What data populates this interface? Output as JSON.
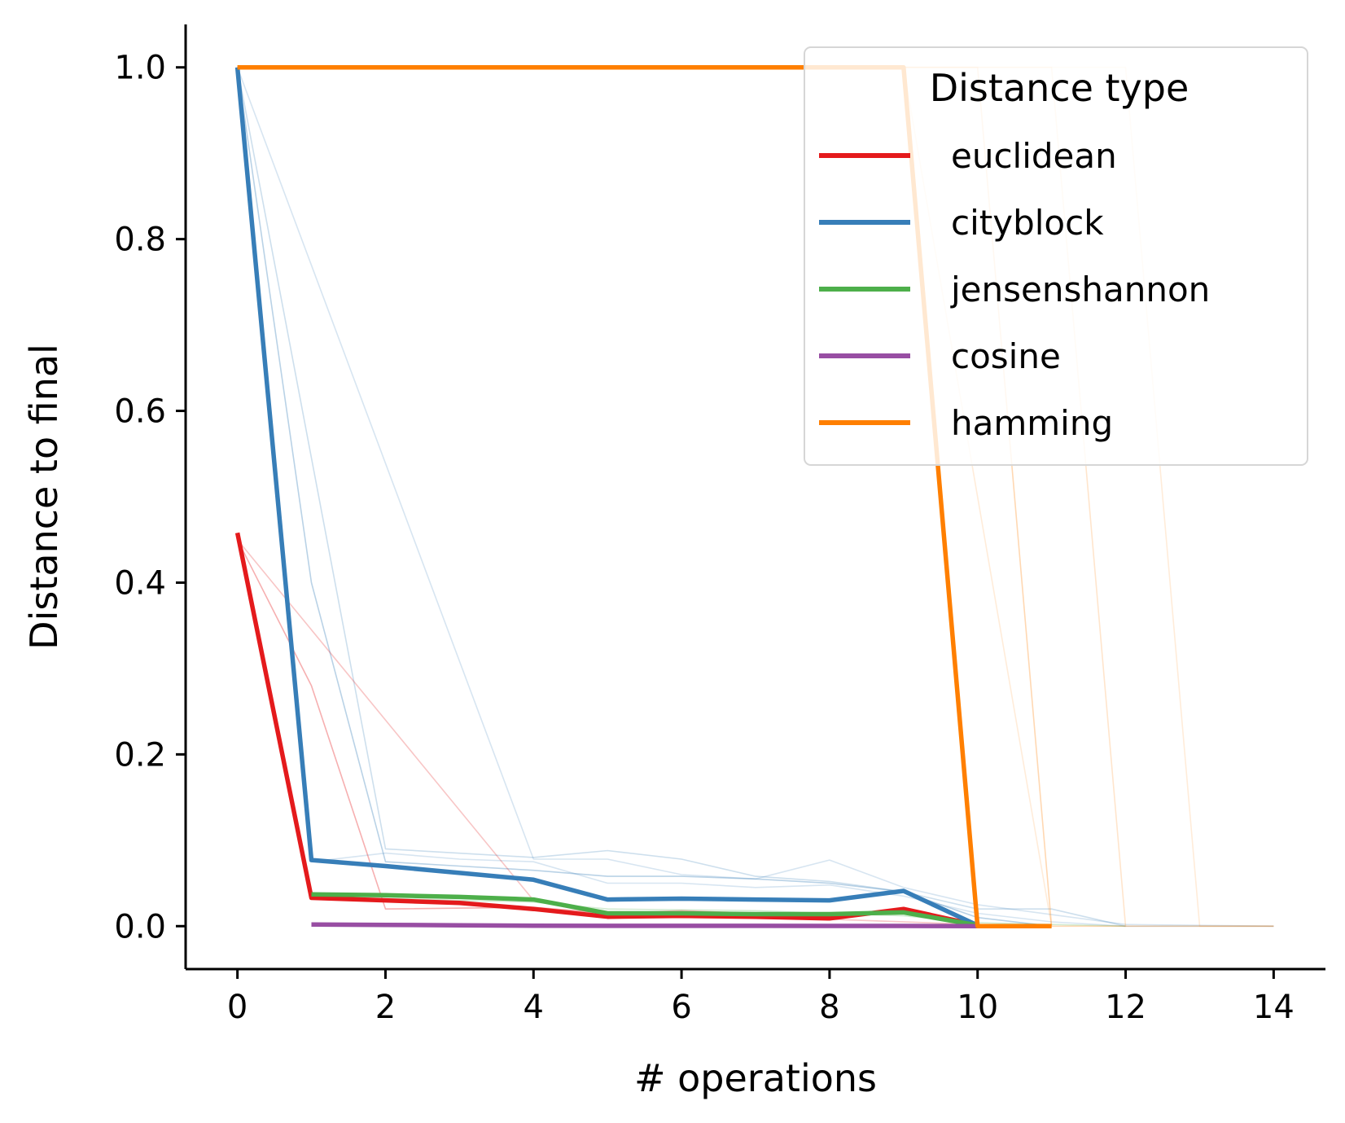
{
  "chart_data": {
    "type": "line",
    "xlabel": "# operations",
    "ylabel": "Distance to final",
    "xlim": [
      -0.7,
      14.7
    ],
    "ylim": [
      -0.05,
      1.05
    ],
    "xticks": [
      0,
      2,
      4,
      6,
      8,
      10,
      12,
      14
    ],
    "yticks": [
      0.0,
      0.2,
      0.4,
      0.6,
      0.8,
      1.0
    ],
    "xtick_labels": [
      "0",
      "2",
      "4",
      "6",
      "8",
      "10",
      "12",
      "14"
    ],
    "ytick_labels": [
      "0.0",
      "0.2",
      "0.4",
      "0.6",
      "0.8",
      "1.0"
    ],
    "grid": false,
    "legend": {
      "title": "Distance type",
      "position": "top-right"
    },
    "series": [
      {
        "name": "euclidean",
        "color": "#e41a1c",
        "x": [
          0,
          1,
          2,
          3,
          4,
          5,
          6,
          7,
          8,
          9,
          10
        ],
        "y": [
          0.458,
          0.033,
          0.03,
          0.027,
          0.02,
          0.011,
          0.012,
          0.011,
          0.009,
          0.02,
          0.001
        ]
      },
      {
        "name": "cityblock",
        "color": "#377eb8",
        "x": [
          0,
          1,
          2,
          3,
          4,
          5,
          6,
          7,
          8,
          9,
          10
        ],
        "y": [
          1.0,
          0.077,
          0.07,
          0.062,
          0.054,
          0.031,
          0.032,
          0.031,
          0.03,
          0.041,
          0.001
        ]
      },
      {
        "name": "jensenshannon",
        "color": "#4daf4a",
        "x": [
          1,
          2,
          3,
          4,
          5,
          6,
          7,
          8,
          9,
          10
        ],
        "y": [
          0.037,
          0.036,
          0.034,
          0.031,
          0.015,
          0.015,
          0.014,
          0.014,
          0.016,
          0.001
        ]
      },
      {
        "name": "cosine",
        "color": "#984ea3",
        "x": [
          1,
          2,
          3,
          4,
          5,
          6,
          7,
          8,
          9,
          10
        ],
        "y": [
          0.002,
          0.0015,
          0.001,
          0.0005,
          0.0004,
          0.0004,
          0.0004,
          0.0003,
          0.0003,
          0.0
        ]
      },
      {
        "name": "hamming",
        "color": "#ff7f00",
        "x": [
          0,
          1,
          2,
          3,
          4,
          5,
          6,
          7,
          8,
          9,
          10,
          11
        ],
        "y": [
          1.0,
          1.0,
          1.0,
          1.0,
          1.0,
          1.0,
          1.0,
          1.0,
          1.0,
          1.0,
          0.0,
          0.0
        ]
      }
    ],
    "background_traces": [
      {
        "color": "#377eb8",
        "opacity": 0.25,
        "x": [
          0,
          2,
          4,
          5,
          6,
          7,
          8,
          9,
          10,
          11,
          12,
          14
        ],
        "y": [
          1.0,
          0.09,
          0.08,
          0.088,
          0.078,
          0.058,
          0.052,
          0.04,
          0.02,
          0.02,
          0.0,
          0.0
        ]
      },
      {
        "color": "#377eb8",
        "opacity": 0.35,
        "x": [
          0,
          1,
          2,
          3,
          4,
          5,
          6,
          7,
          8,
          9,
          10,
          11
        ],
        "y": [
          1.0,
          0.4,
          0.075,
          0.07,
          0.065,
          0.058,
          0.058,
          0.055,
          0.05,
          0.04,
          0.01,
          0.0
        ]
      },
      {
        "color": "#377eb8",
        "opacity": 0.2,
        "x": [
          0,
          4,
          5,
          6,
          7,
          8,
          9,
          10,
          12,
          14
        ],
        "y": [
          1.0,
          0.078,
          0.078,
          0.06,
          0.055,
          0.077,
          0.045,
          0.025,
          0.002,
          0.0
        ]
      },
      {
        "color": "#377eb8",
        "opacity": 0.2,
        "x": [
          1,
          2,
          3,
          4,
          5,
          6,
          7,
          8,
          9,
          10,
          11,
          12
        ],
        "y": [
          0.075,
          0.085,
          0.078,
          0.075,
          0.05,
          0.05,
          0.045,
          0.048,
          0.035,
          0.015,
          0.005,
          0.0
        ]
      },
      {
        "color": "#e41a1c",
        "opacity": 0.35,
        "x": [
          0,
          1,
          2,
          4,
          5,
          6,
          8,
          9,
          10
        ],
        "y": [
          0.45,
          0.28,
          0.02,
          0.022,
          0.015,
          0.018,
          0.012,
          0.016,
          0.0
        ]
      },
      {
        "color": "#e41a1c",
        "opacity": 0.25,
        "x": [
          0,
          4,
          5,
          6,
          8,
          10,
          11
        ],
        "y": [
          0.45,
          0.03,
          0.012,
          0.01,
          0.008,
          0.002,
          0.0
        ]
      },
      {
        "color": "#4daf4a",
        "opacity": 0.25,
        "x": [
          1,
          3,
          4,
          5,
          7,
          9,
          10,
          12
        ],
        "y": [
          0.035,
          0.03,
          0.028,
          0.02,
          0.018,
          0.012,
          0.004,
          0.0
        ]
      },
      {
        "color": "#ff7f00",
        "opacity": 0.3,
        "x": [
          0,
          9,
          10,
          11,
          12,
          14
        ],
        "y": [
          1.0,
          1.0,
          1.0,
          0.0,
          0.0,
          0.0
        ]
      },
      {
        "color": "#ff7f00",
        "opacity": 0.2,
        "x": [
          0,
          10,
          11,
          12
        ],
        "y": [
          1.0,
          1.0,
          1.0,
          0.0
        ]
      },
      {
        "color": "#ff7f00",
        "opacity": 0.15,
        "x": [
          0,
          11,
          12,
          13,
          14
        ],
        "y": [
          1.0,
          1.0,
          1.0,
          0.0,
          0.0
        ]
      },
      {
        "color": "#ff7f00",
        "opacity": 0.15,
        "x": [
          0,
          8,
          9,
          11
        ],
        "y": [
          1.0,
          1.0,
          1.0,
          0.0
        ]
      }
    ]
  }
}
